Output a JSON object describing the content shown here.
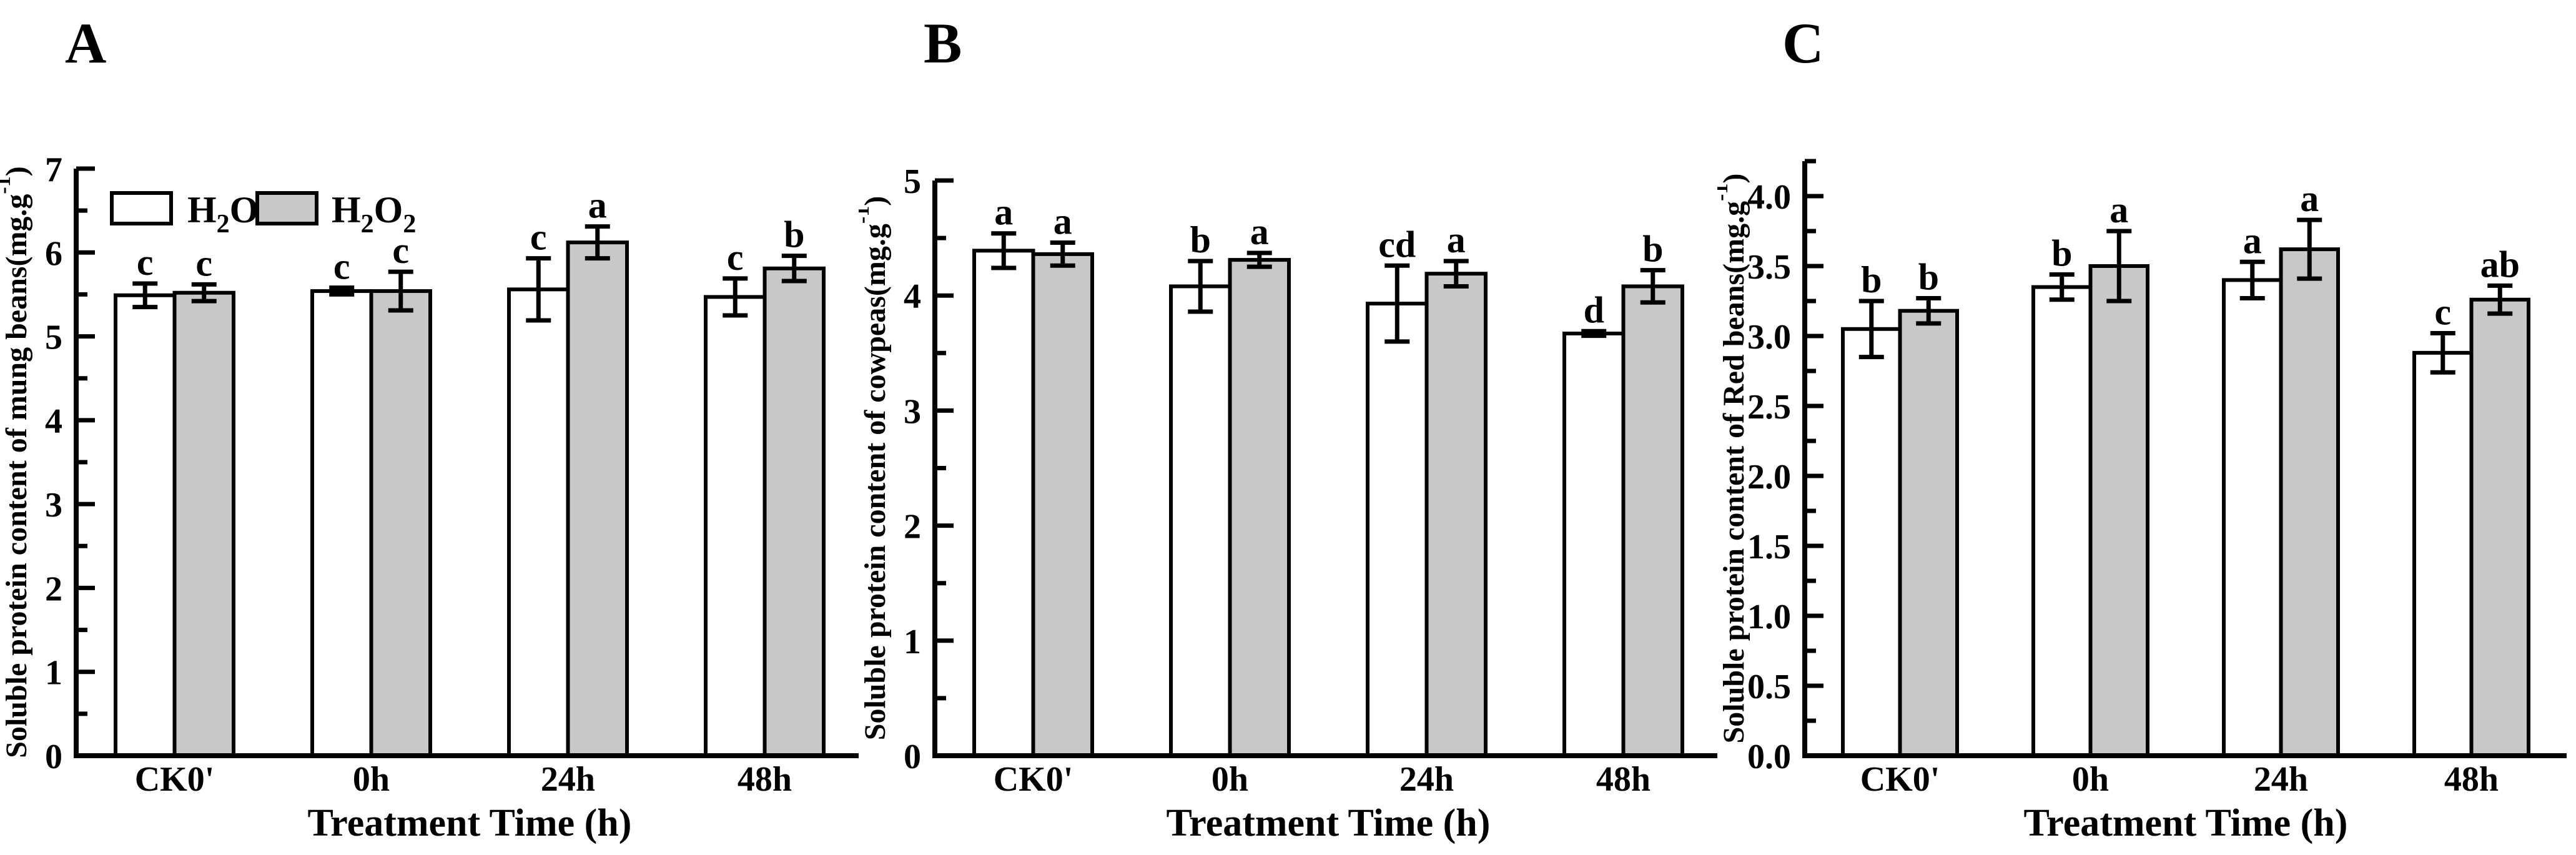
{
  "figure": {
    "background": "#ffffff",
    "bar_fill_h2o": "#ffffff",
    "bar_fill_h2o2": "#c8c8c8",
    "line_color": "#000000",
    "legend": {
      "entries": [
        {
          "formula": "H2O",
          "fill": "#ffffff"
        },
        {
          "formula": "H2O2",
          "fill": "#c8c8c8"
        }
      ]
    }
  },
  "chart_data": [
    {
      "type": "bar",
      "panel_label": "A",
      "title": "",
      "xlabel": "Treatment Time (h)",
      "ylabel_main": "Soluble protein content of mung beans(mg.g",
      "ylabel_sup": "-1",
      "ylabel_end": ")",
      "categories": [
        "CK0'",
        "0h",
        "24h",
        "48h"
      ],
      "ylim": [
        0,
        7
      ],
      "ytick_major": 1,
      "ytick_minor": 0.5,
      "ytick_decimals": 0,
      "ytick_label_max": 7,
      "grid": false,
      "legend_position": "top-left-inside",
      "show_legend": true,
      "series": [
        {
          "name": "H2O",
          "fill": "#ffffff",
          "values": [
            5.49,
            5.54,
            5.56,
            5.47
          ],
          "errors": [
            0.14,
            0.04,
            0.37,
            0.22
          ],
          "letters": [
            "c",
            "c",
            "c",
            "c"
          ]
        },
        {
          "name": "H2O2",
          "fill": "#c8c8c8",
          "values": [
            5.52,
            5.54,
            6.12,
            5.81
          ],
          "errors": [
            0.1,
            0.23,
            0.19,
            0.15
          ],
          "letters": [
            "c",
            "c",
            "a",
            "b"
          ]
        }
      ]
    },
    {
      "type": "bar",
      "panel_label": "B",
      "title": "",
      "xlabel": "Treatment Time (h)",
      "ylabel_main": "Soluble protein content of cowpeas(mg.g",
      "ylabel_sup": "-1",
      "ylabel_end": ")",
      "categories": [
        "CK0'",
        "0h",
        "24h",
        "48h"
      ],
      "ylim": [
        0,
        5
      ],
      "ytick_major": 1,
      "ytick_minor": 0.5,
      "ytick_decimals": 0,
      "ytick_label_max": 5,
      "grid": false,
      "show_legend": false,
      "series": [
        {
          "name": "H2O",
          "fill": "#ffffff",
          "values": [
            4.39,
            4.08,
            3.93,
            3.67
          ],
          "errors": [
            0.15,
            0.22,
            0.33,
            0.02
          ],
          "letters": [
            "a",
            "b",
            "cd",
            "d"
          ]
        },
        {
          "name": "H2O2",
          "fill": "#c8c8c8",
          "values": [
            4.36,
            4.31,
            4.19,
            4.08
          ],
          "errors": [
            0.1,
            0.06,
            0.11,
            0.14
          ],
          "letters": [
            "a",
            "a",
            "a",
            "b"
          ]
        }
      ]
    },
    {
      "type": "bar",
      "panel_label": "C",
      "title": "",
      "xlabel": "Treatment Time (h)",
      "ylabel_main": "Soluble protein content of Red beans(mg.g",
      "ylabel_sup": "-1",
      "ylabel_end": ")",
      "categories": [
        "CK0'",
        "0h",
        "24h",
        "48h"
      ],
      "ylim": [
        0,
        4.25
      ],
      "ytick_major": 0.5,
      "ytick_minor": 0.25,
      "ytick_decimals": 1,
      "ytick_label_max": 4.0,
      "grid": false,
      "show_legend": false,
      "series": [
        {
          "name": "H2O",
          "fill": "#ffffff",
          "values": [
            3.05,
            3.35,
            3.4,
            2.88
          ],
          "errors": [
            0.2,
            0.09,
            0.13,
            0.14
          ],
          "letters": [
            "b",
            "b",
            "a",
            "c"
          ]
        },
        {
          "name": "H2O2",
          "fill": "#c8c8c8",
          "values": [
            3.18,
            3.5,
            3.62,
            3.26
          ],
          "errors": [
            0.09,
            0.25,
            0.21,
            0.1
          ],
          "letters": [
            "b",
            "a",
            "a",
            "ab"
          ]
        }
      ]
    }
  ]
}
